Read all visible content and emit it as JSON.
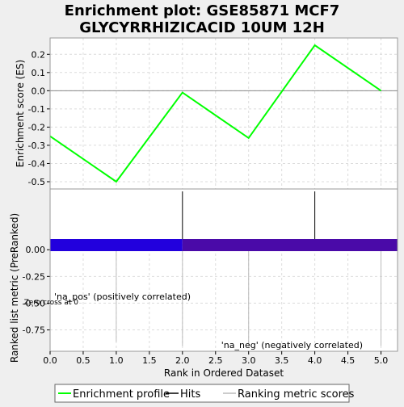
{
  "chart_data": {
    "type": "line",
    "title_lines": [
      "Enrichment plot: GSE85871 MCF7",
      "GLYCYRRHIZICACID 10UM 12H"
    ],
    "xlabel": "Rank in Ordered Dataset",
    "es_panel": {
      "ylabel": "Enrichment score (ES)",
      "ylim": [
        -0.54,
        0.29
      ],
      "yticks": [
        0.2,
        0.1,
        0.0,
        -0.1,
        -0.2,
        -0.3,
        -0.4,
        -0.5
      ],
      "ytick_labels": [
        "0.2",
        "0.1",
        "0.0",
        "-0.1",
        "-0.2",
        "-0.3",
        "-0.4",
        "-0.5"
      ],
      "series": [
        {
          "name": "Enrichment profile",
          "color": "#00ff00",
          "x": [
            0,
            1,
            2,
            3,
            4,
            5
          ],
          "y": [
            -0.25,
            -0.5,
            -0.01,
            -0.26,
            0.25,
            0.0
          ]
        }
      ]
    },
    "hits": {
      "x": [
        2,
        4
      ],
      "color": "#000000"
    },
    "rank_bar": {
      "segments": [
        {
          "from": 0,
          "to": 2,
          "color": "#2200dd"
        },
        {
          "from": 2,
          "to": 5.25,
          "color": "#4a0aa8"
        }
      ]
    },
    "metric_panel": {
      "ylabel": "Ranked list metric (PreRanked)",
      "ylim": [
        -0.95,
        0.1
      ],
      "yticks": [
        0.0,
        -0.25,
        -0.5,
        -0.75
      ],
      "ytick_labels": [
        "0.00",
        "-0.25",
        "-0.50",
        "-0.75"
      ],
      "stems": [
        {
          "x": 1,
          "y": -0.86
        },
        {
          "x": 2,
          "y": -0.9
        },
        {
          "x": 3,
          "y": -0.9
        },
        {
          "x": 5,
          "y": -0.9
        }
      ],
      "stem_color": "#bbbbbb"
    },
    "xlim": [
      0,
      5.25
    ],
    "xticks": [
      0.0,
      0.5,
      1.0,
      1.5,
      2.0,
      2.5,
      3.0,
      3.5,
      4.0,
      4.5,
      5.0
    ],
    "xtick_labels": [
      "0.0",
      "0.5",
      "1.0",
      "1.5",
      "2.0",
      "2.5",
      "3.0",
      "3.5",
      "4.0",
      "4.5",
      "5.0"
    ],
    "annotations": {
      "positive": {
        "text": "'na_pos' (positively correlated)",
        "color": "#cc0000"
      },
      "negative": {
        "text": "'na_neg' (negatively correlated)",
        "color": "#0000cc"
      },
      "zero_cross": {
        "text": "Zero cross at 0",
        "color": "#000000"
      }
    },
    "legend": {
      "placement": "bottom",
      "entries": [
        {
          "label": "Enrichment profile",
          "color": "#00ff00",
          "style": "line"
        },
        {
          "label": "Hits",
          "color": "#000000",
          "style": "line"
        },
        {
          "label": "Ranking metric scores",
          "color": "#bbbbbb",
          "style": "line"
        }
      ]
    },
    "grid": true
  }
}
